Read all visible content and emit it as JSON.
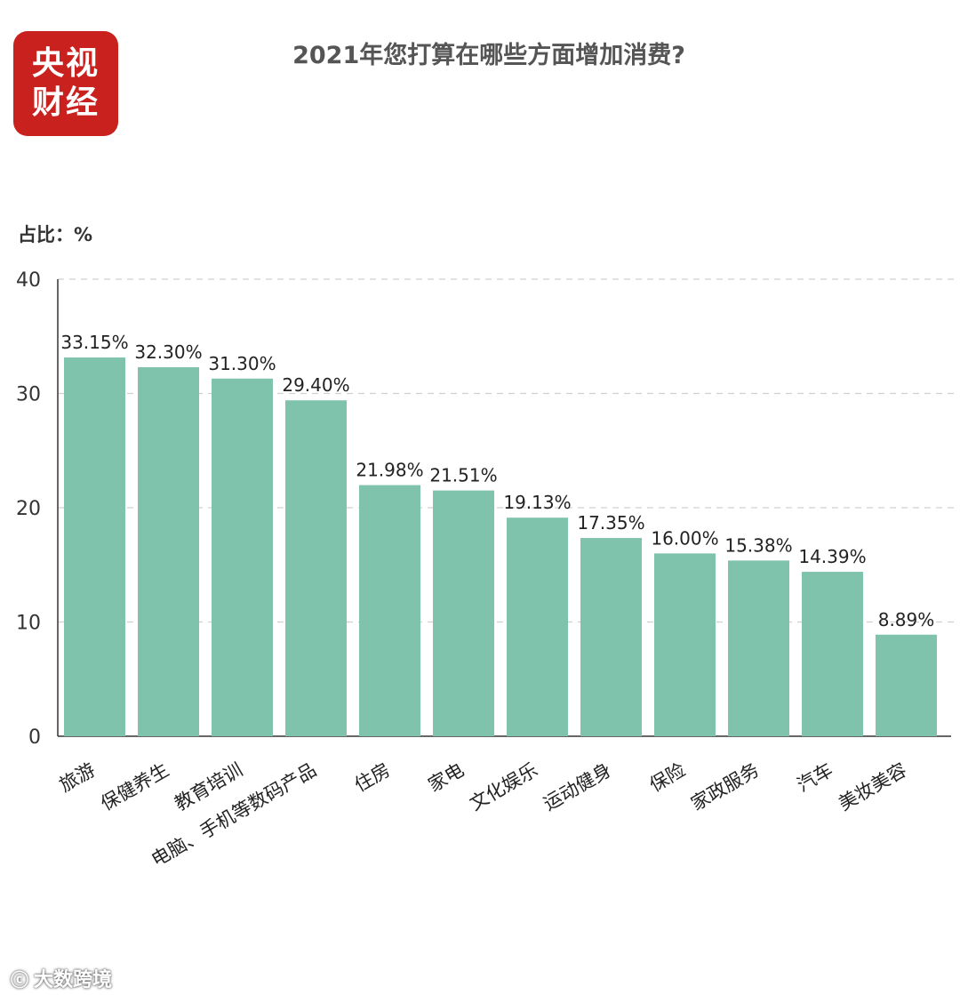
{
  "logo": {
    "line1": "央视",
    "line2": "财经",
    "color": "#c8211e"
  },
  "watermark": {
    "icon": "chat-bubble-icon",
    "text": "大数跨境"
  },
  "chart_data": {
    "type": "bar",
    "title": "2021年您打算在哪些方面增加消费?",
    "ylabel": "占比：%",
    "xlabel": "",
    "ylim": [
      0,
      40
    ],
    "yticks": [
      0,
      10,
      20,
      30,
      40
    ],
    "grid": true,
    "bar_color": "#7fc3ad",
    "categories": [
      "旅游",
      "保健养生",
      "教育培训",
      "电脑、手机等数码产品",
      "住房",
      "家电",
      "文化娱乐",
      "运动健身",
      "保险",
      "家政服务",
      "汽车",
      "美妆美容"
    ],
    "values": [
      33.15,
      32.3,
      31.3,
      29.4,
      21.98,
      21.51,
      19.13,
      17.35,
      16.0,
      15.38,
      14.39,
      8.89
    ],
    "value_labels": [
      "33.15%",
      "32.30%",
      "31.30%",
      "29.40%",
      "21.98%",
      "21.51%",
      "19.13%",
      "17.35%",
      "16.00%",
      "15.38%",
      "14.39%",
      "8.89%"
    ]
  }
}
